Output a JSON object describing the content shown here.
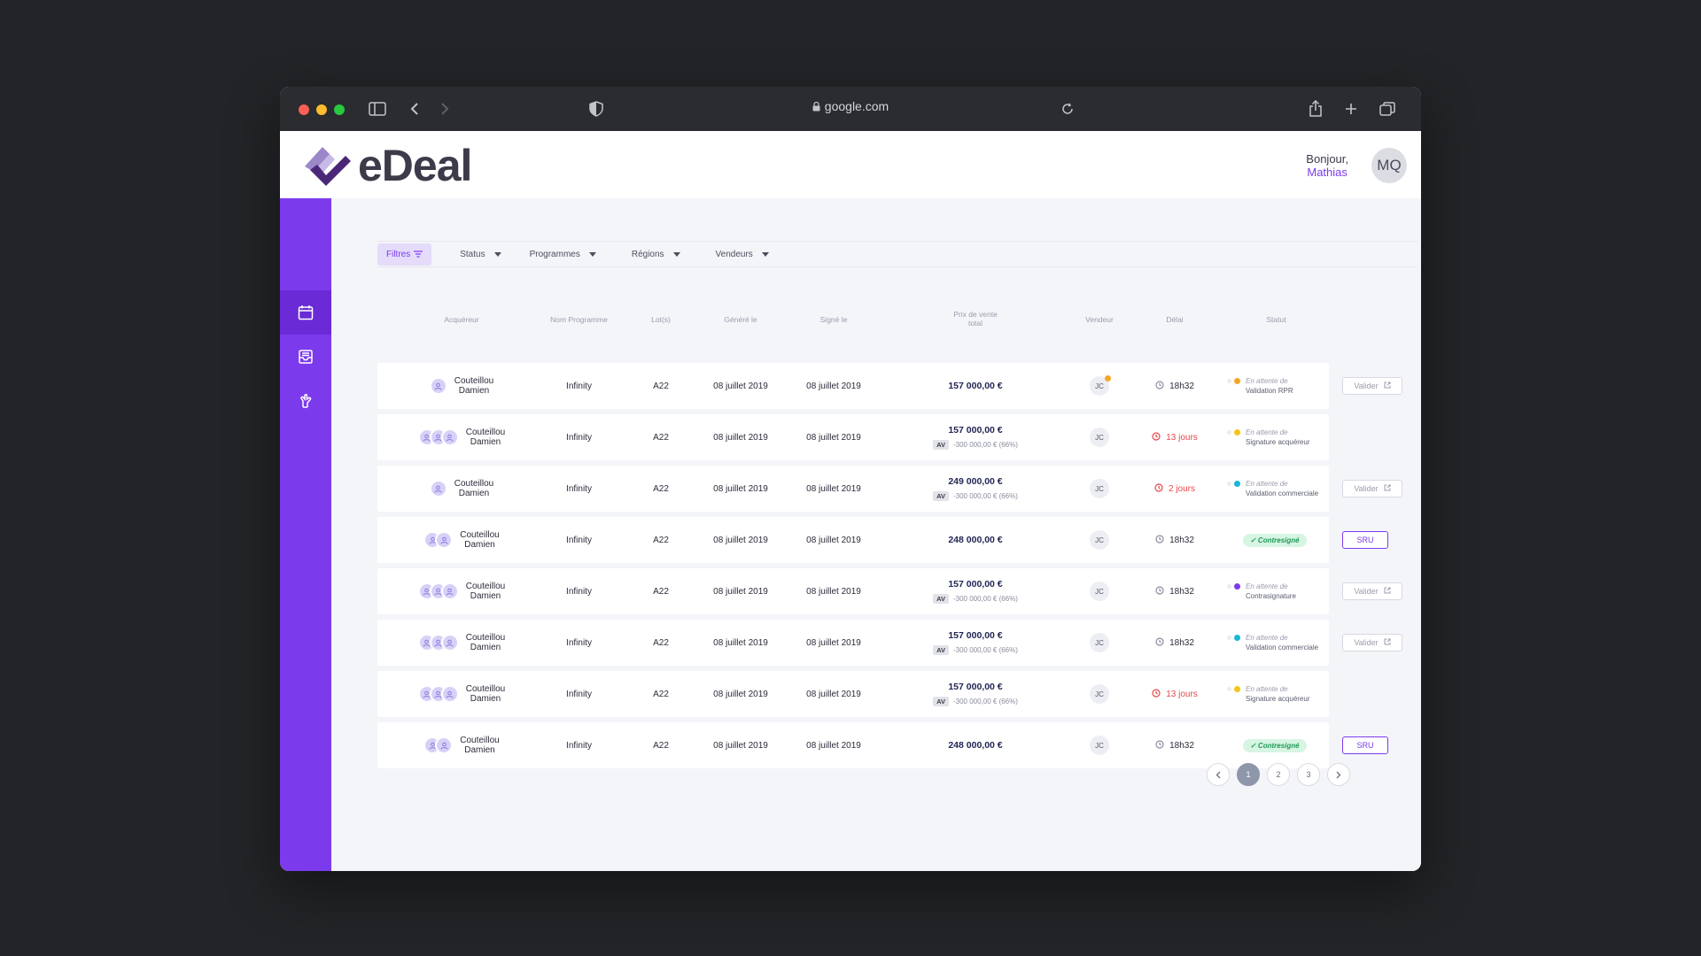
{
  "browser": {
    "url": "google.com"
  },
  "app": {
    "brand": "eDeal",
    "greeting": "Bonjour,",
    "user_name": "Mathias",
    "user_initials": "MQ",
    "accent_color": "#7c3aed"
  },
  "sidebar": {
    "items": [
      {
        "icon": "calendar-icon",
        "active": true
      },
      {
        "icon": "inbox-icon",
        "active": false
      },
      {
        "icon": "handshake-icon",
        "active": false
      }
    ]
  },
  "filters": {
    "button": "Filtres",
    "dropdowns": [
      "Status",
      "Programmes",
      "Régions",
      "Vendeurs"
    ]
  },
  "table": {
    "headers": {
      "acquereur": "Acquéreur",
      "programme": "Nom Programme",
      "lots": "Lot(s)",
      "genere": "Généré le",
      "signe": "Signé le",
      "prix_1": "Prix de vente",
      "prix_2": "total",
      "vendeur": "Vendeur",
      "delai": "Délai",
      "statut": "Statut"
    },
    "rows": [
      {
        "people": 1,
        "first": "Couteillou",
        "last": "Damien",
        "programme": "Infinity",
        "lot": "A22",
        "genere": "08 juillet 2019",
        "signe": "08 juillet 2019",
        "prix": "157 000,00 €",
        "av_label": "",
        "av_value": "",
        "vendeur": "JC",
        "vendeur_dot": true,
        "delai": "18h32",
        "late": false,
        "status_a": "En attente de",
        "status_b": "Validation RPR",
        "status_color": "#f5a623",
        "badge": "",
        "action": "Valider"
      },
      {
        "people": 3,
        "first": "Couteillou",
        "last": "Damien",
        "programme": "Infinity",
        "lot": "A22",
        "genere": "08 juillet 2019",
        "signe": "08 juillet 2019",
        "prix": "157 000,00 €",
        "av_label": "AV",
        "av_value": "-300 000,00 € (66%)",
        "vendeur": "JC",
        "vendeur_dot": false,
        "delai": "13 jours",
        "late": true,
        "status_a": "En attente de",
        "status_b": "Signature acquéreur",
        "status_color": "#f5c518",
        "badge": "",
        "action": ""
      },
      {
        "people": 1,
        "first": "Couteillou",
        "last": "Damien",
        "programme": "Infinity",
        "lot": "A22",
        "genere": "08 juillet 2019",
        "signe": "08 juillet 2019",
        "prix": "249 000,00 €",
        "av_label": "AV",
        "av_value": "-300 000,00 € (66%)",
        "vendeur": "JC",
        "vendeur_dot": false,
        "delai": "2 jours",
        "late": true,
        "status_a": "En attente de",
        "status_b": "Validation commerciale",
        "status_color": "#17b7d6",
        "badge": "",
        "action": "Valider"
      },
      {
        "people": 2,
        "first": "Couteillou",
        "last": "Damien",
        "programme": "Infinity",
        "lot": "A22",
        "genere": "08 juillet 2019",
        "signe": "08 juillet 2019",
        "prix": "248 000,00 €",
        "av_label": "",
        "av_value": "",
        "vendeur": "JC",
        "vendeur_dot": false,
        "delai": "18h32",
        "late": false,
        "status_a": "",
        "status_b": "",
        "status_color": "",
        "badge": "✓ Contresigné",
        "action": "SRU"
      },
      {
        "people": 3,
        "first": "Couteillou",
        "last": "Damien",
        "programme": "Infinity",
        "lot": "A22",
        "genere": "08 juillet 2019",
        "signe": "08 juillet 2019",
        "prix": "157 000,00 €",
        "av_label": "AV",
        "av_value": "-300 000,00 € (66%)",
        "vendeur": "JC",
        "vendeur_dot": false,
        "delai": "18h32",
        "late": false,
        "status_a": "En attente de",
        "status_b": "Contrasignature",
        "status_color": "#7c3aed",
        "badge": "",
        "action": "Valider"
      },
      {
        "people": 3,
        "first": "Couteillou",
        "last": "Damien",
        "programme": "Infinity",
        "lot": "A22",
        "genere": "08 juillet 2019",
        "signe": "08 juillet 2019",
        "prix": "157 000,00 €",
        "av_label": "AV",
        "av_value": "-300 000,00 € (66%)",
        "vendeur": "JC",
        "vendeur_dot": false,
        "delai": "18h32",
        "late": false,
        "status_a": "En attente de",
        "status_b": "Validation commerciale",
        "status_color": "#17b7d6",
        "badge": "",
        "action": "Valider"
      },
      {
        "people": 3,
        "first": "Couteillou",
        "last": "Damien",
        "programme": "Infinity",
        "lot": "A22",
        "genere": "08 juillet 2019",
        "signe": "08 juillet 2019",
        "prix": "157 000,00 €",
        "av_label": "AV",
        "av_value": "-300 000,00 € (66%)",
        "vendeur": "JC",
        "vendeur_dot": false,
        "delai": "13 jours",
        "late": true,
        "status_a": "En attente de",
        "status_b": "Signature acquéreur",
        "status_color": "#f5c518",
        "badge": "",
        "action": ""
      },
      {
        "people": 2,
        "first": "Couteillou",
        "last": "Damien",
        "programme": "Infinity",
        "lot": "A22",
        "genere": "08 juillet 2019",
        "signe": "08 juillet 2019",
        "prix": "248 000,00 €",
        "av_label": "",
        "av_value": "",
        "vendeur": "JC",
        "vendeur_dot": false,
        "delai": "18h32",
        "late": false,
        "status_a": "",
        "status_b": "",
        "status_color": "",
        "badge": "✓ Contresigné",
        "action": "SRU"
      }
    ]
  },
  "pagination": {
    "pages": [
      "1",
      "2",
      "3"
    ],
    "current": "1"
  }
}
